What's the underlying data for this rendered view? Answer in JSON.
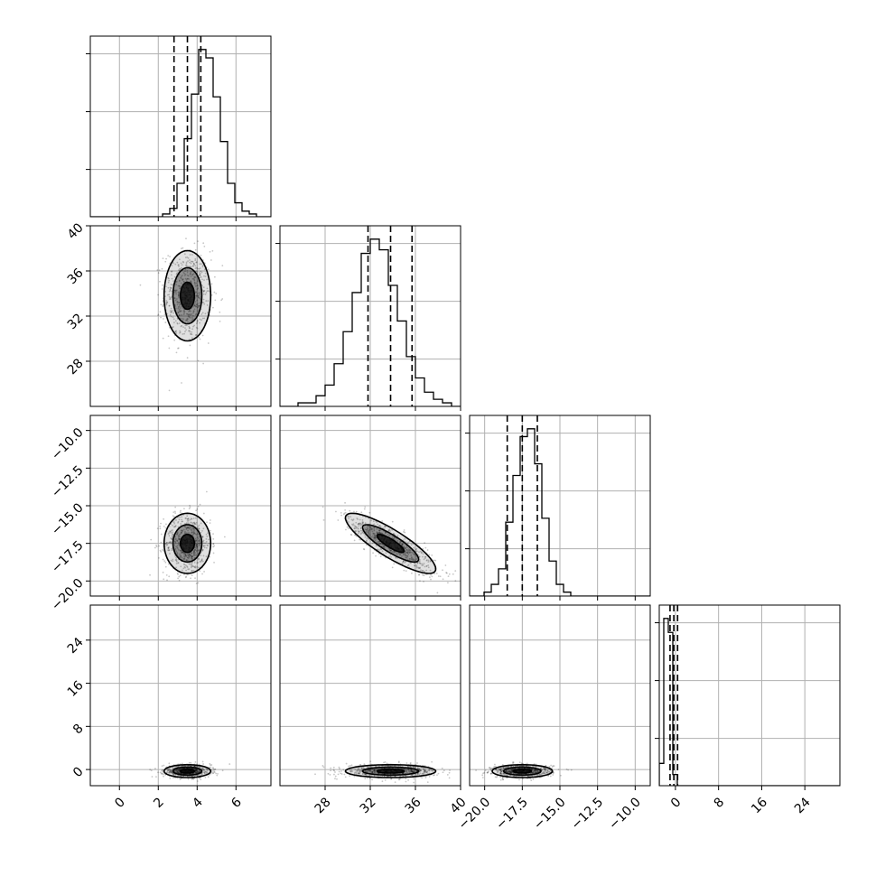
{
  "chart_data": {
    "type": "corner",
    "grid": true,
    "params": [
      {
        "range": [
          -1.5,
          7.8
        ],
        "ticks": [
          0,
          2,
          4,
          6
        ],
        "tick_labels": [
          "0",
          "2",
          "4",
          "6"
        ],
        "mean": 3.5,
        "std": 0.6,
        "quantiles": [
          2.81,
          3.5,
          4.19
        ]
      },
      {
        "range": [
          24.0,
          40.0
        ],
        "ticks": [
          28,
          32,
          36,
          40
        ],
        "tick_labels": [
          "28",
          "32",
          "36",
          "40"
        ],
        "mean": 33.8,
        "std": 2.0,
        "quantiles": [
          31.8,
          33.8,
          35.7
        ]
      },
      {
        "range": [
          -21.0,
          -9.0
        ],
        "ticks": [
          -20.0,
          -17.5,
          -15.0,
          -12.5,
          -10.0
        ],
        "tick_labels": [
          "−20.0",
          "−17.5",
          "−15.0",
          "−12.5",
          "−10.0"
        ],
        "mean": -17.5,
        "std": 1.0,
        "quantiles": [
          -18.5,
          -17.5,
          -16.5
        ]
      },
      {
        "range": [
          -3.0,
          30.5
        ],
        "ticks": [
          0,
          8,
          16,
          24
        ],
        "tick_labels": [
          "0",
          "8",
          "16",
          "24"
        ],
        "mean": -0.3,
        "std": 0.6,
        "quantiles": [
          -1.0,
          -0.3,
          0.4
        ]
      }
    ],
    "correlation": {
      "1-2": -0.85
    },
    "hist_counts": [
      [
        0,
        0,
        0,
        0,
        0,
        0,
        0,
        0,
        0,
        0,
        1,
        3,
        12,
        28,
        44,
        60,
        57,
        43,
        27,
        12,
        5,
        2,
        1,
        0,
        0
      ],
      [
        0,
        0,
        1,
        1,
        3,
        6,
        12,
        21,
        32,
        43,
        47,
        44,
        34,
        24,
        14,
        8,
        4,
        2,
        1,
        0
      ],
      [
        0,
        0,
        1,
        3,
        7,
        19,
        31,
        41,
        43,
        34,
        20,
        9,
        3,
        1,
        0,
        0,
        0,
        0,
        0,
        0,
        0,
        0,
        0,
        0,
        0
      ],
      [
        8,
        60,
        55,
        4,
        0,
        0,
        0,
        0,
        0,
        0,
        0,
        0,
        0,
        0,
        0,
        0,
        0,
        0,
        0,
        0,
        0,
        0,
        0,
        0,
        0,
        0,
        0,
        0,
        0,
        0,
        0,
        0,
        0,
        0,
        0,
        0,
        0,
        0,
        0,
        0
      ]
    ]
  }
}
